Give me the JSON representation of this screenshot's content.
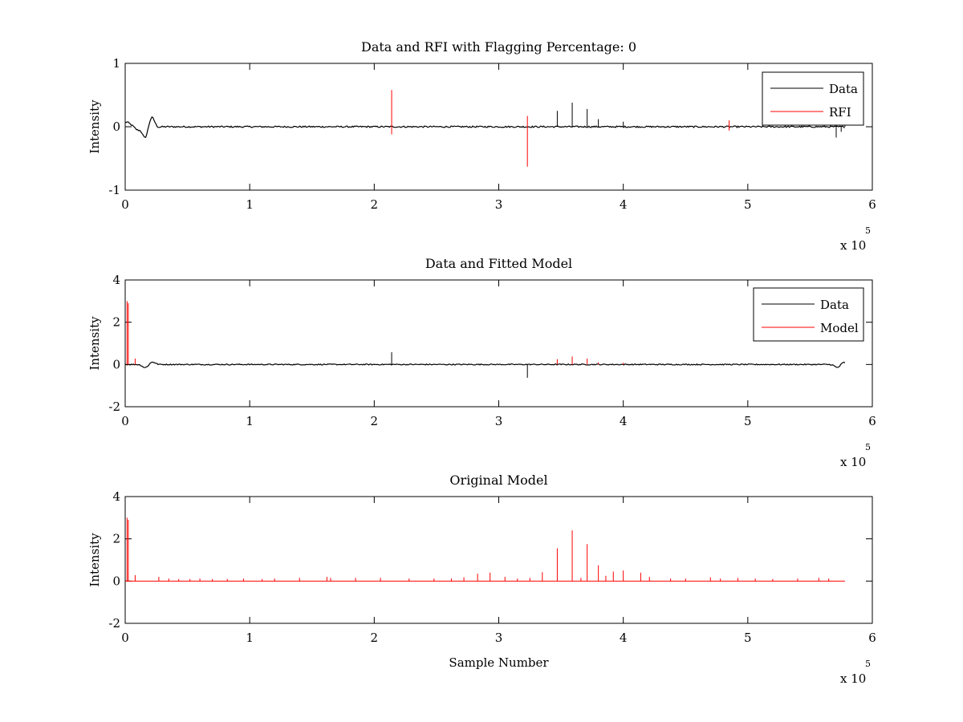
{
  "chart_data": [
    {
      "type": "line",
      "title": "Data and RFI with Flagging Percentage: 0",
      "xlabel": "",
      "ylabel": "Intensity",
      "xlim": [
        0,
        600000
      ],
      "ylim": [
        -1,
        1
      ],
      "xticks": [
        0,
        1,
        2,
        3,
        4,
        5,
        6
      ],
      "yticks": [
        -1,
        0,
        1
      ],
      "x_exponent_label": "x 10",
      "x_exponent_power": "5",
      "legend": "top-right",
      "series": [
        {
          "name": "Data",
          "color": "#000000",
          "baseline": {
            "x_start": 0,
            "x_end": 578000,
            "value": 0,
            "noise": 0.012
          },
          "features": [
            {
              "x": 1000,
              "value": 0.07
            },
            {
              "x": 5000,
              "value": 0.02
            },
            {
              "x": 10000,
              "value": -0.05
            },
            {
              "x": 16000,
              "value": -0.18
            },
            {
              "x": 20000,
              "value": 0.05
            },
            {
              "x": 22000,
              "value": 0.12
            },
            {
              "x": 25000,
              "value": -0.02
            }
          ],
          "spikes": [
            {
              "x": 347000,
              "value": 0.25
            },
            {
              "x": 359000,
              "value": 0.38
            },
            {
              "x": 371000,
              "value": 0.28
            },
            {
              "x": 380000,
              "value": 0.12
            },
            {
              "x": 400000,
              "value": 0.08
            },
            {
              "x": 571000,
              "value": -0.17
            },
            {
              "x": 575000,
              "value": -0.08
            },
            {
              "x": 578000,
              "value": 0.02
            }
          ]
        },
        {
          "name": "RFI",
          "color": "#ff0000",
          "spikes": [
            {
              "x": 214000,
              "min": -0.12,
              "max": 0.58
            },
            {
              "x": 323000,
              "min": -0.63,
              "max": 0.17
            },
            {
              "x": 485000,
              "min": -0.06,
              "max": 0.1
            }
          ]
        }
      ]
    },
    {
      "type": "line",
      "title": "Data and Fitted Model",
      "xlabel": "",
      "ylabel": "Intensity",
      "xlim": [
        0,
        600000
      ],
      "ylim": [
        -2,
        4
      ],
      "xticks": [
        0,
        1,
        2,
        3,
        4,
        5,
        6
      ],
      "yticks": [
        -2,
        0,
        2,
        4
      ],
      "x_exponent_label": "x 10",
      "x_exponent_power": "5",
      "legend": "top-right",
      "series": [
        {
          "name": "Data",
          "color": "#000000",
          "baseline": {
            "x_start": 0,
            "x_end": 578000,
            "value": 0,
            "noise": 0.025
          },
          "features": [
            {
              "x": 16000,
              "value": -0.15
            },
            {
              "x": 22000,
              "value": 0.12
            },
            {
              "x": 572000,
              "value": -0.15
            },
            {
              "x": 577000,
              "value": 0.1
            }
          ],
          "spikes": [
            {
              "x": 214000,
              "value": 0.58
            },
            {
              "x": 323000,
              "value": -0.63
            }
          ]
        },
        {
          "name": "Model",
          "color": "#ff0000",
          "spikes": [
            {
              "x": 1500,
              "value": 3.0
            },
            {
              "x": 2500,
              "value": 2.9
            },
            {
              "x": 8000,
              "value": 0.28
            },
            {
              "x": 347000,
              "value": 0.25
            },
            {
              "x": 359000,
              "value": 0.38
            },
            {
              "x": 371000,
              "value": 0.28
            },
            {
              "x": 380000,
              "value": 0.1
            },
            {
              "x": 400000,
              "value": 0.08
            }
          ]
        }
      ]
    },
    {
      "type": "line",
      "title": "Original Model",
      "xlabel": "Sample Number",
      "ylabel": "Intensity",
      "xlim": [
        0,
        600000
      ],
      "ylim": [
        -2,
        4
      ],
      "xticks": [
        0,
        1,
        2,
        3,
        4,
        5,
        6
      ],
      "yticks": [
        -2,
        0,
        2,
        4
      ],
      "x_exponent_label": "x 10",
      "x_exponent_power": "5",
      "series": [
        {
          "name": "",
          "color": "#ff0000",
          "baseline": {
            "x_start": 0,
            "x_end": 578000,
            "value": 0
          },
          "spikes": [
            {
              "x": 1500,
              "value": 3.0
            },
            {
              "x": 2500,
              "value": 2.9
            },
            {
              "x": 8000,
              "value": 0.28
            },
            {
              "x": 27000,
              "value": 0.2
            },
            {
              "x": 35000,
              "value": 0.12
            },
            {
              "x": 43000,
              "value": 0.1
            },
            {
              "x": 52000,
              "value": 0.1
            },
            {
              "x": 60000,
              "value": 0.12
            },
            {
              "x": 70000,
              "value": 0.1
            },
            {
              "x": 82000,
              "value": 0.1
            },
            {
              "x": 95000,
              "value": 0.12
            },
            {
              "x": 110000,
              "value": 0.1
            },
            {
              "x": 120000,
              "value": 0.12
            },
            {
              "x": 140000,
              "value": 0.15
            },
            {
              "x": 162000,
              "value": 0.2
            },
            {
              "x": 165000,
              "value": 0.15
            },
            {
              "x": 185000,
              "value": 0.15
            },
            {
              "x": 205000,
              "value": 0.15
            },
            {
              "x": 228000,
              "value": 0.12
            },
            {
              "x": 248000,
              "value": 0.12
            },
            {
              "x": 262000,
              "value": 0.12
            },
            {
              "x": 272000,
              "value": 0.18
            },
            {
              "x": 283000,
              "value": 0.35
            },
            {
              "x": 293000,
              "value": 0.4
            },
            {
              "x": 305000,
              "value": 0.2
            },
            {
              "x": 315000,
              "value": 0.12
            },
            {
              "x": 325000,
              "value": 0.15
            },
            {
              "x": 335000,
              "value": 0.42
            },
            {
              "x": 347000,
              "value": 1.55
            },
            {
              "x": 359000,
              "value": 2.4
            },
            {
              "x": 366000,
              "value": 0.15
            },
            {
              "x": 371000,
              "value": 1.75
            },
            {
              "x": 380000,
              "value": 0.75
            },
            {
              "x": 386000,
              "value": 0.25
            },
            {
              "x": 392000,
              "value": 0.45
            },
            {
              "x": 400000,
              "value": 0.5
            },
            {
              "x": 414000,
              "value": 0.4
            },
            {
              "x": 421000,
              "value": 0.2
            },
            {
              "x": 438000,
              "value": 0.12
            },
            {
              "x": 450000,
              "value": 0.12
            },
            {
              "x": 470000,
              "value": 0.18
            },
            {
              "x": 478000,
              "value": 0.12
            },
            {
              "x": 492000,
              "value": 0.15
            },
            {
              "x": 506000,
              "value": 0.12
            },
            {
              "x": 520000,
              "value": 0.1
            },
            {
              "x": 540000,
              "value": 0.12
            },
            {
              "x": 557000,
              "value": 0.15
            },
            {
              "x": 565000,
              "value": 0.12
            }
          ]
        }
      ]
    }
  ]
}
